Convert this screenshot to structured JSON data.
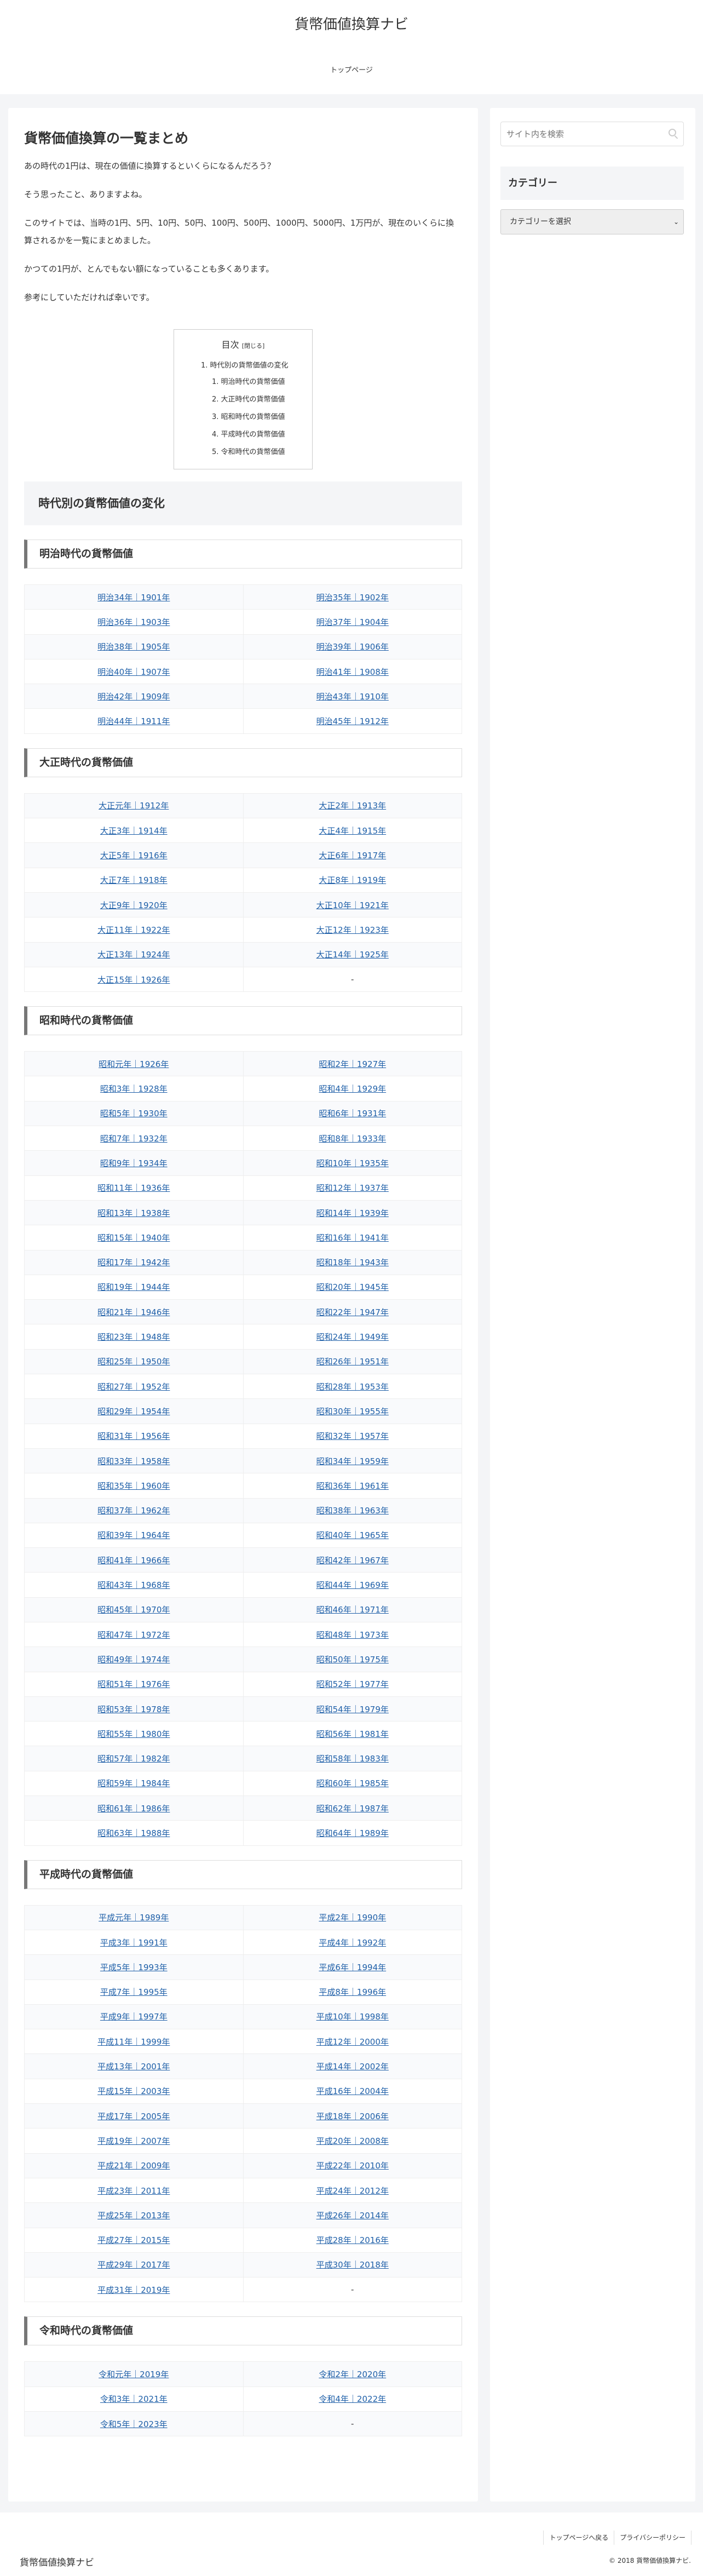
{
  "header": {
    "site_title": "貨幣価値換算ナビ",
    "nav": [
      "トップページ"
    ]
  },
  "article": {
    "title": "貨幣価値換算の一覧まとめ",
    "paragraphs": [
      "あの時代の1円は、現在の価値に換算するといくらになるんだろう？",
      "そう思ったこと、ありますよね。",
      "このサイトでは、当時の1円、5円、10円、50円、100円、500円、1000円、5000円、1万円が、現在のいくらに換算されるかを一覧にまとめました。",
      "かつての1円が、とんでもない額になっていることも多くあります。",
      "参考にしていただければ幸いです。"
    ],
    "toc": {
      "title": "目次",
      "toggle": "[閉じる]",
      "top": "時代別の貨幣価値の変化",
      "items": [
        "明治時代の貨幣価値",
        "大正時代の貨幣価値",
        "昭和時代の貨幣価値",
        "平成時代の貨幣価値",
        "令和時代の貨幣価値"
      ]
    },
    "section_title": "時代別の貨幣価値の変化",
    "eras": [
      {
        "title": "明治時代の貨幣価値",
        "cells": [
          "明治34年｜1901年",
          "明治35年｜1902年",
          "明治36年｜1903年",
          "明治37年｜1904年",
          "明治38年｜1905年",
          "明治39年｜1906年",
          "明治40年｜1907年",
          "明治41年｜1908年",
          "明治42年｜1909年",
          "明治43年｜1910年",
          "明治44年｜1911年",
          "明治45年｜1912年"
        ]
      },
      {
        "title": "大正時代の貨幣価値",
        "cells": [
          "大正元年｜1912年",
          "大正2年｜1913年",
          "大正3年｜1914年",
          "大正4年｜1915年",
          "大正5年｜1916年",
          "大正6年｜1917年",
          "大正7年｜1918年",
          "大正8年｜1919年",
          "大正9年｜1920年",
          "大正10年｜1921年",
          "大正11年｜1922年",
          "大正12年｜1923年",
          "大正13年｜1924年",
          "大正14年｜1925年",
          "大正15年｜1926年",
          "-"
        ]
      },
      {
        "title": "昭和時代の貨幣価値",
        "cells": [
          "昭和元年｜1926年",
          "昭和2年｜1927年",
          "昭和3年｜1928年",
          "昭和4年｜1929年",
          "昭和5年｜1930年",
          "昭和6年｜1931年",
          "昭和7年｜1932年",
          "昭和8年｜1933年",
          "昭和9年｜1934年",
          "昭和10年｜1935年",
          "昭和11年｜1936年",
          "昭和12年｜1937年",
          "昭和13年｜1938年",
          "昭和14年｜1939年",
          "昭和15年｜1940年",
          "昭和16年｜1941年",
          "昭和17年｜1942年",
          "昭和18年｜1943年",
          "昭和19年｜1944年",
          "昭和20年｜1945年",
          "昭和21年｜1946年",
          "昭和22年｜1947年",
          "昭和23年｜1948年",
          "昭和24年｜1949年",
          "昭和25年｜1950年",
          "昭和26年｜1951年",
          "昭和27年｜1952年",
          "昭和28年｜1953年",
          "昭和29年｜1954年",
          "昭和30年｜1955年",
          "昭和31年｜1956年",
          "昭和32年｜1957年",
          "昭和33年｜1958年",
          "昭和34年｜1959年",
          "昭和35年｜1960年",
          "昭和36年｜1961年",
          "昭和37年｜1962年",
          "昭和38年｜1963年",
          "昭和39年｜1964年",
          "昭和40年｜1965年",
          "昭和41年｜1966年",
          "昭和42年｜1967年",
          "昭和43年｜1968年",
          "昭和44年｜1969年",
          "昭和45年｜1970年",
          "昭和46年｜1971年",
          "昭和47年｜1972年",
          "昭和48年｜1973年",
          "昭和49年｜1974年",
          "昭和50年｜1975年",
          "昭和51年｜1976年",
          "昭和52年｜1977年",
          "昭和53年｜1978年",
          "昭和54年｜1979年",
          "昭和55年｜1980年",
          "昭和56年｜1981年",
          "昭和57年｜1982年",
          "昭和58年｜1983年",
          "昭和59年｜1984年",
          "昭和60年｜1985年",
          "昭和61年｜1986年",
          "昭和62年｜1987年",
          "昭和63年｜1988年",
          "昭和64年｜1989年"
        ]
      },
      {
        "title": "平成時代の貨幣価値",
        "cells": [
          "平成元年｜1989年",
          "平成2年｜1990年",
          "平成3年｜1991年",
          "平成4年｜1992年",
          "平成5年｜1993年",
          "平成6年｜1994年",
          "平成7年｜1995年",
          "平成8年｜1996年",
          "平成9年｜1997年",
          "平成10年｜1998年",
          "平成11年｜1999年",
          "平成12年｜2000年",
          "平成13年｜2001年",
          "平成14年｜2002年",
          "平成15年｜2003年",
          "平成16年｜2004年",
          "平成17年｜2005年",
          "平成18年｜2006年",
          "平成19年｜2007年",
          "平成20年｜2008年",
          "平成21年｜2009年",
          "平成22年｜2010年",
          "平成23年｜2011年",
          "平成24年｜2012年",
          "平成25年｜2013年",
          "平成26年｜2014年",
          "平成27年｜2015年",
          "平成28年｜2016年",
          "平成29年｜2017年",
          "平成30年｜2018年",
          "平成31年｜2019年",
          "-"
        ]
      },
      {
        "title": "令和時代の貨幣価値",
        "cells": [
          "令和元年｜2019年",
          "令和2年｜2020年",
          "令和3年｜2021年",
          "令和4年｜2022年",
          "令和5年｜2023年",
          "-"
        ]
      }
    ]
  },
  "sidebar": {
    "search_placeholder": "サイト内を検索",
    "category_heading": "カテゴリー",
    "category_select": "カテゴリーを選択"
  },
  "footer": {
    "links": [
      "トップページへ戻る",
      "プライバシーポリシー"
    ],
    "site_title": "貨幣価値換算ナビ",
    "copyright": "© 2018 貨幣価値換算ナビ."
  },
  "colors": {
    "link": "#1e5fa8",
    "background": "#f4f5f7",
    "h3_border": "#777777"
  }
}
